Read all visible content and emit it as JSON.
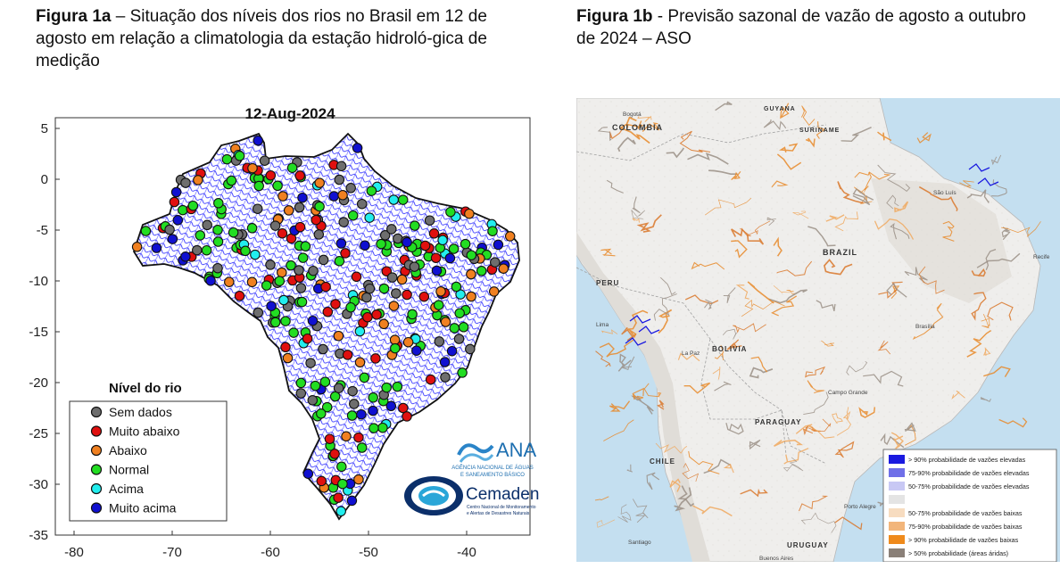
{
  "figure_a": {
    "caption_bold": "Figura 1a",
    "caption_text": " – Situação dos níveis dos rios no Brasil em 12 de agosto em relação a climatologia da estação hidroló-gica de medição",
    "map_title": "12-Aug-2024",
    "y_ticks": [
      "5",
      "0",
      "-5",
      "-10",
      "-15",
      "-20",
      "-25",
      "-30",
      "-35"
    ],
    "x_ticks": [
      "-80",
      "-70",
      "-60",
      "-50",
      "-40"
    ],
    "legend_title": "Nível do rio",
    "legend_items": [
      {
        "label": "Sem dados",
        "color": "#6e6e6e"
      },
      {
        "label": "Muito abaixo",
        "color": "#e0100f"
      },
      {
        "label": "Abaixo",
        "color": "#f08020"
      },
      {
        "label": "Normal",
        "color": "#22dd22"
      },
      {
        "label": "Acima",
        "color": "#22eeee"
      },
      {
        "label": "Muito acima",
        "color": "#1010d0"
      }
    ],
    "ana_logo": {
      "name": "ANA",
      "subtitle_line1": "AGÊNCIA NACIONAL DE ÁGUAS",
      "subtitle_line2": "E SANEAMENTO BÁSICO"
    },
    "cemaden_logo": {
      "name": "Cemaden",
      "subtitle_line1": "Centro Nacional de Monitoramento",
      "subtitle_line2": "e Alertas de Desastres Naturais"
    },
    "river_color": "#1a1aff"
  },
  "figure_b": {
    "caption_bold": "Figura 1b",
    "caption_text": " - Previsão sazonal de vazão de agosto a outubro de 2024 – ASO",
    "map_labels": {
      "colombia": "COLOMBIA",
      "guyana": "GUYANA",
      "suriname": "SURINAME",
      "brazil": "BRAZIL",
      "peru": "PERU",
      "bolivia": "BOLIVIA",
      "paraguay": "PARAGUAY",
      "chile": "CHILE",
      "uruguay": "URUGUAY"
    },
    "cities": {
      "bogota": "Bogotá",
      "sao_luis": "São Luís",
      "recife": "Recife",
      "brasilia": "Brasília",
      "campo_grande": "Campo Grande",
      "porto_alegre": "Porto Alegre",
      "buenos_aires": "Buenos Aires",
      "santiago": "Santiago",
      "lima": "Lima",
      "la_paz": "La Paz"
    },
    "legend_items": [
      {
        "label": "> 90% probabilidade de vazões elevadas",
        "color": "#1a1ae0"
      },
      {
        "label": "75-90% probabilidade de vazões elevadas",
        "color": "#6f6fe8"
      },
      {
        "label": "50-75% probabilidade de vazões elevadas",
        "color": "#c8c8f4"
      },
      {
        "label": "",
        "color": "#e4e4e4"
      },
      {
        "label": "50-75% probabilidade de vazões baixas",
        "color": "#f7dcc0"
      },
      {
        "label": "75-90% probabilidade de vazões baixas",
        "color": "#f2b57a"
      },
      {
        "label": "> 90% probabilidade de vazões baixas",
        "color": "#ef8a1c"
      },
      {
        "label": "> 50% probabilidade (áreas áridas)",
        "color": "#8a8078"
      }
    ]
  }
}
